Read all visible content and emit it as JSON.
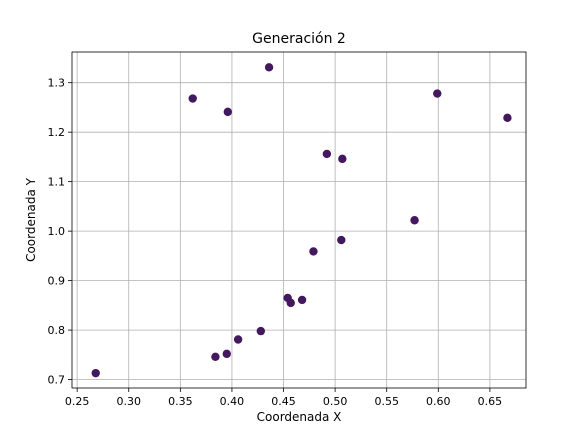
{
  "chart_data": {
    "type": "scatter",
    "title": "Generación 2",
    "xlabel": "Coordenada X",
    "ylabel": "Coordenada Y",
    "xlim": [
      0.245,
      0.685
    ],
    "ylim": [
      0.683,
      1.362
    ],
    "xticks": [
      "0.25",
      "0.30",
      "0.35",
      "0.40",
      "0.45",
      "0.50",
      "0.55",
      "0.60",
      "0.65"
    ],
    "yticks": [
      "0.7",
      "0.8",
      "0.9",
      "1.0",
      "1.1",
      "1.2",
      "1.3"
    ],
    "grid": true,
    "point_color": "#44185f",
    "points": [
      {
        "x": 0.268,
        "y": 0.713
      },
      {
        "x": 0.362,
        "y": 1.268
      },
      {
        "x": 0.384,
        "y": 0.746
      },
      {
        "x": 0.395,
        "y": 0.752
      },
      {
        "x": 0.396,
        "y": 1.241
      },
      {
        "x": 0.406,
        "y": 0.781
      },
      {
        "x": 0.428,
        "y": 0.798
      },
      {
        "x": 0.436,
        "y": 1.331
      },
      {
        "x": 0.454,
        "y": 0.865
      },
      {
        "x": 0.457,
        "y": 0.855
      },
      {
        "x": 0.468,
        "y": 0.861
      },
      {
        "x": 0.479,
        "y": 0.959
      },
      {
        "x": 0.492,
        "y": 1.156
      },
      {
        "x": 0.506,
        "y": 0.982
      },
      {
        "x": 0.507,
        "y": 1.146
      },
      {
        "x": 0.577,
        "y": 1.022
      },
      {
        "x": 0.599,
        "y": 1.278
      },
      {
        "x": 0.667,
        "y": 1.229
      }
    ]
  }
}
